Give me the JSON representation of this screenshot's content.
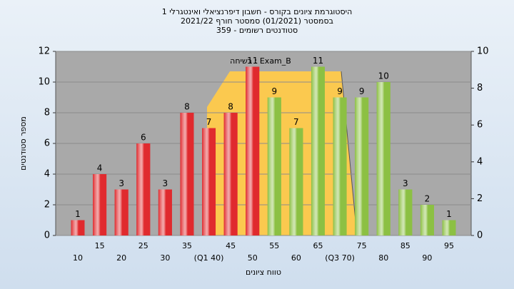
{
  "chart_data": {
    "type": "bar",
    "title": [
      "היסטוגרמת ציונים בקורס - חשבון דיפרנציאלי ואינטגרלי 1",
      "בסמסטר  (01/2021)  סמסטר חורף 2021/22",
      "סטודנטים רשומים - 359"
    ],
    "annotation": "בשיחה : Exam_B",
    "x_label": "טווח ציונים",
    "y_label": "מספר סטודנטים",
    "categories": [
      "10",
      "15",
      "20",
      "25",
      "30",
      "35",
      "(Q1 40)",
      "45",
      "50",
      "55",
      "60",
      "65",
      "(Q3 70)",
      "75",
      "80",
      "85",
      "90",
      "95"
    ],
    "values": [
      1,
      4,
      3,
      6,
      3,
      8,
      7,
      8,
      11,
      9,
      7,
      11,
      9,
      9,
      10,
      3,
      2,
      1
    ],
    "colors": [
      "#e02a2e",
      "#e02a2e",
      "#e02a2e",
      "#e02a2e",
      "#e02a2e",
      "#e02a2e",
      "#e02a2e",
      "#e02a2e",
      "#e02a2e",
      "#8cc043",
      "#8cc043",
      "#8cc043",
      "#8cc043",
      "#8cc043",
      "#8cc043",
      "#8cc043",
      "#8cc043",
      "#8cc043"
    ],
    "ylim": [
      0,
      12
    ],
    "yticks": [
      0,
      2,
      4,
      6,
      8,
      10,
      12
    ],
    "y2lim": [
      0,
      10
    ],
    "y2ticks": [
      0,
      2,
      4,
      6,
      8,
      10
    ],
    "grid": true
  }
}
